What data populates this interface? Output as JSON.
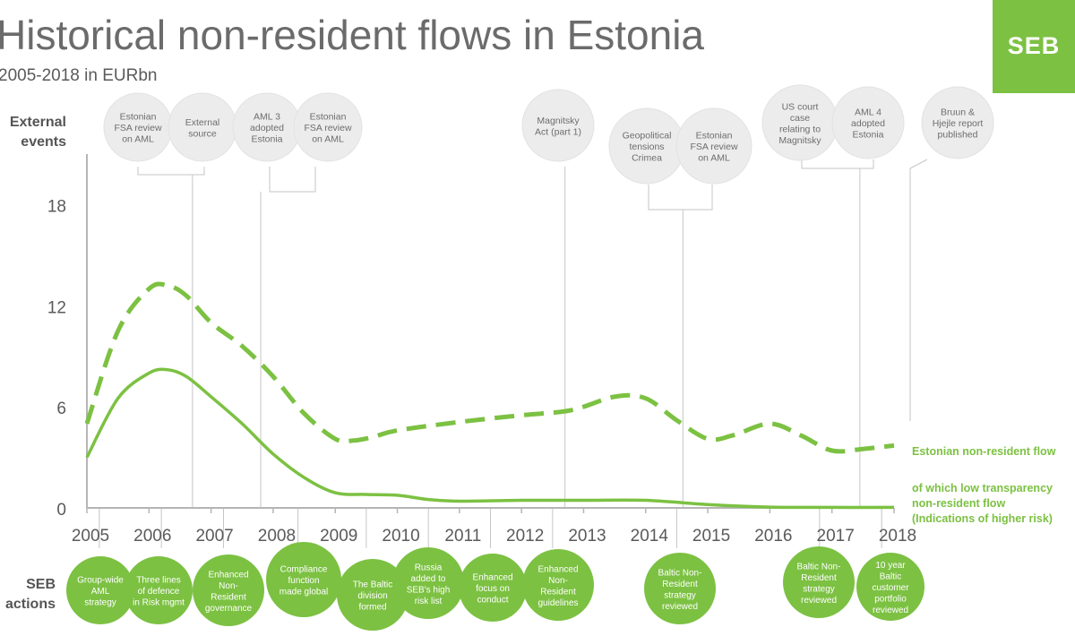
{
  "header": {
    "title": "Historical non-resident flows in Estonia",
    "subtitle": "2005-2018 in EURbn",
    "logo": "SEB",
    "brand_color": "#7cc142"
  },
  "chart_data": {
    "type": "line",
    "title": "Historical non-resident flows in Estonia",
    "subtitle": "2005-2018 in EURbn",
    "xlim": [
      2005,
      2018
    ],
    "ylim": [
      0,
      21
    ],
    "y_ticks": [
      0,
      6,
      12,
      18
    ],
    "x_ticks": [
      2005,
      2006,
      2007,
      2008,
      2009,
      2010,
      2011,
      2012,
      2013,
      2014,
      2015,
      2016,
      2017,
      2018
    ],
    "grid": false,
    "legend": "right",
    "series": [
      {
        "name": "Estonian non-resident flow",
        "style": "dashed",
        "color": "#7cc142",
        "x": [
          2005,
          2005.5,
          2006.0,
          2006.3,
          2006.6,
          2007,
          2007.5,
          2008,
          2008.5,
          2009,
          2009.3,
          2009.6,
          2010,
          2011,
          2012,
          2012.8,
          2013.5,
          2014,
          2014.5,
          2015,
          2015.4,
          2016,
          2016.5,
          2017,
          2017.5,
          2018
        ],
        "y": [
          5,
          10.5,
          13.0,
          13.2,
          12.6,
          11.0,
          9.6,
          7.8,
          5.6,
          4.1,
          4.0,
          4.2,
          4.6,
          5.1,
          5.5,
          5.8,
          6.6,
          6.5,
          5.2,
          4.1,
          4.3,
          5.0,
          4.3,
          3.4,
          3.5,
          3.7
        ]
      },
      {
        "name": "of which low transparency non-resident flow (Indications of higher risk)",
        "style": "solid",
        "color": "#7cc142",
        "x": [
          2005,
          2005.5,
          2006.0,
          2006.3,
          2006.6,
          2007,
          2007.5,
          2008,
          2008.5,
          2009,
          2009.5,
          2010,
          2010.5,
          2011,
          2012,
          2013,
          2014,
          2015,
          2016,
          2017,
          2018
        ],
        "y": [
          3.0,
          6.5,
          8.0,
          8.2,
          7.8,
          6.6,
          5.0,
          3.2,
          1.8,
          0.9,
          0.8,
          0.75,
          0.5,
          0.4,
          0.45,
          0.45,
          0.45,
          0.2,
          0.05,
          0.03,
          0.03
        ]
      }
    ],
    "legend_labels": {
      "dashed": "Estonian non-resident flow",
      "solid_lines": [
        "of which low transparency",
        "non-resident flow",
        "(Indications of higher risk)"
      ]
    },
    "row_labels": {
      "external": [
        "External",
        "events"
      ],
      "seb": [
        "SEB",
        "actions"
      ]
    },
    "external_events": [
      {
        "x": 2005.7,
        "lines": [
          "Estonian",
          "FSA review",
          "on AML"
        ]
      },
      {
        "x": 2006.7,
        "lines": [
          "External",
          "source"
        ]
      },
      {
        "x": 2007.8,
        "lines": [
          "AML 3",
          "adopted",
          "Estonia"
        ]
      },
      {
        "x": 2008.7,
        "lines": [
          "Estonian",
          "FSA review",
          "on AML"
        ]
      },
      {
        "x": 2012.7,
        "lines": [
          "Magnitsky",
          "Act (part 1)"
        ]
      },
      {
        "x": 2014.0,
        "lines": [
          "Geopolitical",
          "tensions",
          "Crimea"
        ]
      },
      {
        "x": 2015.0,
        "lines": [
          "Estonian",
          "FSA review",
          "on AML"
        ]
      },
      {
        "x": 2016.4,
        "lines": [
          "US court",
          "case",
          "relating to",
          "Magnitsky"
        ]
      },
      {
        "x": 2017.5,
        "lines": [
          "AML 4",
          "adopted",
          "Estonia"
        ]
      },
      {
        "x": 2018.7,
        "lines": [
          "Bruun &",
          "Hjejle report",
          "published"
        ]
      }
    ],
    "seb_actions": [
      {
        "x": 2005.2,
        "lines": [
          "Group-wide",
          "AML",
          "strategy"
        ]
      },
      {
        "x": 2006.2,
        "lines": [
          "Three lines",
          "of defence",
          "in Risk mgmt"
        ]
      },
      {
        "x": 2007.2,
        "lines": [
          "Enhanced",
          "Non-",
          "Resident",
          "governance"
        ]
      },
      {
        "x": 2008.4,
        "lines": [
          "Compliance",
          "function",
          "made global"
        ]
      },
      {
        "x": 2009.5,
        "lines": [
          "The Baltic",
          "division",
          "formed"
        ]
      },
      {
        "x": 2010.5,
        "lines": [
          "Russia",
          "added to",
          "SEB's high",
          "risk list"
        ]
      },
      {
        "x": 2011.5,
        "lines": [
          "Enhanced",
          "focus on",
          "conduct"
        ]
      },
      {
        "x": 2012.5,
        "lines": [
          "Enhanced",
          "Non-",
          "Resident",
          "guidelines"
        ]
      },
      {
        "x": 2014.5,
        "lines": [
          "Baltic Non-",
          "Resident",
          "strategy",
          "reviewed"
        ]
      },
      {
        "x": 2016.8,
        "lines": [
          "Baltic Non-",
          "Resident",
          "strategy",
          "reviewed"
        ]
      },
      {
        "x": 2017.8,
        "lines": [
          "10 year",
          "Baltic",
          "customer",
          "portfolio",
          "reviewed"
        ]
      }
    ]
  }
}
